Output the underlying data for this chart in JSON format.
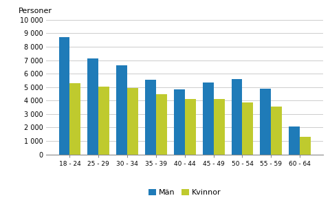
{
  "categories": [
    "18 - 24",
    "25 - 29",
    "30 - 34",
    "35 - 39",
    "40 - 44",
    "45 - 49",
    "50 - 54",
    "55 - 59",
    "60 - 64"
  ],
  "man": [
    8700,
    7150,
    6600,
    5550,
    4850,
    5350,
    5600,
    4900,
    2050
  ],
  "kvinnor": [
    5300,
    5050,
    4950,
    4500,
    4100,
    4100,
    3850,
    3550,
    1300
  ],
  "man_color": "#1F7BB8",
  "kvinnor_color": "#BFCA2E",
  "ylabel": "Personer",
  "ylim": [
    0,
    10000
  ],
  "yticks": [
    0,
    1000,
    2000,
    3000,
    4000,
    5000,
    6000,
    7000,
    8000,
    9000,
    10000
  ],
  "ytick_labels": [
    "0",
    "1 000",
    "2 000",
    "3 000",
    "4 000",
    "5 000",
    "6 000",
    "7 000",
    "8 000",
    "9 000",
    "10 000"
  ],
  "legend_man": "Män",
  "legend_kvinnor": "Kvinnor",
  "bar_width": 0.38,
  "grid_color": "#cccccc",
  "background_color": "#ffffff"
}
